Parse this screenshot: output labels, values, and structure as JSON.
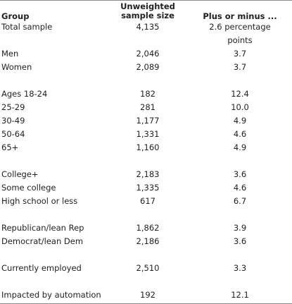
{
  "table": {
    "headers": {
      "group": "Group",
      "sample_size_line1": "Unweighted",
      "sample_size_line2": "sample size",
      "margin": "Plus or minus ..."
    },
    "rows": [
      {
        "group": "Total sample",
        "size": "4,135",
        "margin": "2.6 percentage points"
      },
      {
        "group": "Men",
        "size": "2,046",
        "margin": "3.7"
      },
      {
        "group": "Women",
        "size": "2,089",
        "margin": "3.7"
      },
      {
        "group": "Ages 18-24",
        "size": "182",
        "margin": "12.4"
      },
      {
        "group": "25-29",
        "size": "281",
        "margin": "10.0"
      },
      {
        "group": "30-49",
        "size": "1,177",
        "margin": "4.9"
      },
      {
        "group": "50-64",
        "size": "1,331",
        "margin": "4.6"
      },
      {
        "group": "65+",
        "size": "1,160",
        "margin": "4.9"
      },
      {
        "group": "College+",
        "size": "2,183",
        "margin": "3.6"
      },
      {
        "group": "Some college",
        "size": "1,335",
        "margin": "4.6"
      },
      {
        "group": "High school or less",
        "size": "617",
        "margin": "6.7"
      },
      {
        "group": "Republican/lean Rep",
        "size": "1,862",
        "margin": "3.9"
      },
      {
        "group": "Democrat/lean Dem",
        "size": "2,186",
        "margin": "3.6"
      },
      {
        "group": "Currently employed",
        "size": "2,510",
        "margin": "3.3"
      },
      {
        "group": "Impacted by automation",
        "size": "192",
        "margin": "12.1"
      }
    ]
  }
}
